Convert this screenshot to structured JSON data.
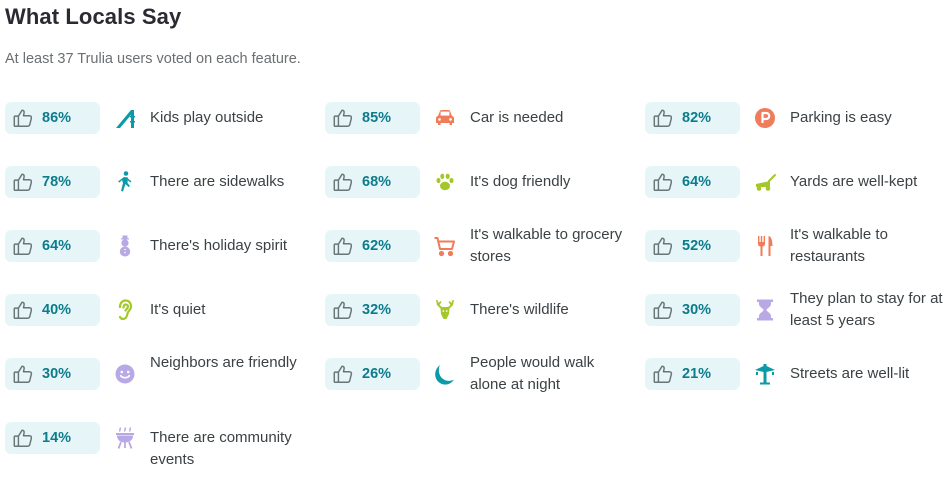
{
  "title": "What Locals Say",
  "subtitle": "At least 37 Trulia users voted on each feature.",
  "colors": {
    "pill_bg": "#e6f6f8",
    "pct_text": "#0c7c8c",
    "teal_icon": "#0d9aa8",
    "orange_icon": "#ef7c5a",
    "lime_icon": "#a4c72a",
    "lavender_icon": "#b9a8e6"
  },
  "features": [
    {
      "percent": "86%",
      "label": "Kids play outside",
      "icon": "slide-icon"
    },
    {
      "percent": "85%",
      "label": "Car is needed",
      "icon": "car-icon"
    },
    {
      "percent": "82%",
      "label": "Parking is easy",
      "icon": "parking-icon"
    },
    {
      "percent": "78%",
      "label": "There are sidewalks",
      "icon": "walking-person-icon"
    },
    {
      "percent": "68%",
      "label": "It's dog friendly",
      "icon": "paw-icon"
    },
    {
      "percent": "64%",
      "label": "Yards are well-kept",
      "icon": "lawn-mower-icon"
    },
    {
      "percent": "64%",
      "label": "There's holiday spirit",
      "icon": "snowman-icon"
    },
    {
      "percent": "62%",
      "label": "It's walkable to grocery stores",
      "icon": "shopping-cart-icon"
    },
    {
      "percent": "52%",
      "label": "It's walkable to restaurants",
      "icon": "fork-knife-icon"
    },
    {
      "percent": "40%",
      "label": "It's quiet",
      "icon": "ear-icon"
    },
    {
      "percent": "32%",
      "label": "There's wildlife",
      "icon": "deer-icon"
    },
    {
      "percent": "30%",
      "label": "They plan to stay for at least 5 years",
      "icon": "hourglass-icon"
    },
    {
      "percent": "30%",
      "label": "Neighbors are friendly",
      "icon": "smiley-icon"
    },
    {
      "percent": "26%",
      "label": "People would walk alone at night",
      "icon": "moon-icon"
    },
    {
      "percent": "21%",
      "label": "Streets are well-lit",
      "icon": "street-lamp-icon"
    },
    {
      "percent": "14%",
      "label": "There are community events",
      "icon": "grill-icon"
    }
  ]
}
